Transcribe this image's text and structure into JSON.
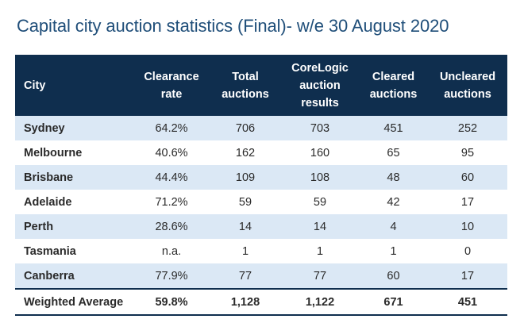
{
  "title": "Capital city auction statistics (Final)- w/e 30 August 2020",
  "headers": {
    "city": "City",
    "clearance_rate": [
      "Clearance",
      "rate"
    ],
    "total_auctions": [
      "Total",
      "auctions"
    ],
    "corelogic_results": [
      "CoreLogic",
      "auction",
      "results"
    ],
    "cleared_auctions": [
      "Cleared",
      "auctions"
    ],
    "uncleared_auctions": [
      "Uncleared",
      "auctions"
    ]
  },
  "rows": [
    {
      "city": "Sydney",
      "clearance_rate": "64.2%",
      "total": "706",
      "corelogic": "703",
      "cleared": "451",
      "uncleared": "252"
    },
    {
      "city": "Melbourne",
      "clearance_rate": "40.6%",
      "total": "162",
      "corelogic": "160",
      "cleared": "65",
      "uncleared": "95"
    },
    {
      "city": "Brisbane",
      "clearance_rate": "44.4%",
      "total": "109",
      "corelogic": "108",
      "cleared": "48",
      "uncleared": "60"
    },
    {
      "city": "Adelaide",
      "clearance_rate": "71.2%",
      "total": "59",
      "corelogic": "59",
      "cleared": "42",
      "uncleared": "17"
    },
    {
      "city": "Perth",
      "clearance_rate": "28.6%",
      "total": "14",
      "corelogic": "14",
      "cleared": "4",
      "uncleared": "10"
    },
    {
      "city": "Tasmania",
      "clearance_rate": "n.a.",
      "total": "1",
      "corelogic": "1",
      "cleared": "1",
      "uncleared": "0"
    },
    {
      "city": "Canberra",
      "clearance_rate": "77.9%",
      "total": "77",
      "corelogic": "77",
      "cleared": "60",
      "uncleared": "17"
    }
  ],
  "total_row": {
    "city": "Weighted Average",
    "clearance_rate": "59.8%",
    "total": "1,128",
    "corelogic": "1,122",
    "cleared": "671",
    "uncleared": "451"
  },
  "colors": {
    "title": "#1f4e79",
    "header_bg": "#0f2e4e",
    "alt_row_bg": "#dbe8f5"
  }
}
